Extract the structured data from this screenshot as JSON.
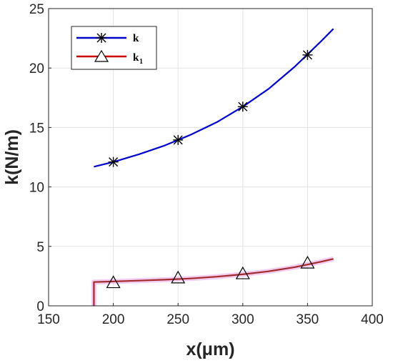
{
  "chart_data": {
    "type": "line",
    "xlabel": "x(μm)",
    "ylabel": "k(N/m)",
    "xlim": [
      150,
      400
    ],
    "ylim": [
      0,
      25
    ],
    "xticks": [
      150,
      200,
      250,
      300,
      350,
      400
    ],
    "yticks": [
      0,
      5,
      10,
      15,
      20,
      25
    ],
    "grid": true,
    "legend_position": "top-left",
    "series": [
      {
        "name": "k",
        "color": "#0000cc",
        "marker": "asterisk",
        "curve_x": [
          185,
          200,
          220,
          240,
          260,
          280,
          300,
          320,
          340,
          360,
          370
        ],
        "curve_y": [
          11.7,
          12.1,
          12.75,
          13.5,
          14.4,
          15.45,
          16.75,
          18.25,
          20.1,
          22.2,
          23.3
        ],
        "marker_x": [
          200,
          250,
          300,
          350
        ],
        "marker_y": [
          12.1,
          13.95,
          16.75,
          21.1
        ]
      },
      {
        "name": "k1",
        "color": "#a52a2a",
        "marker": "triangle",
        "curve_x": [
          185,
          185,
          200,
          220,
          240,
          260,
          280,
          300,
          320,
          340,
          360,
          370
        ],
        "curve_y": [
          0,
          2.0,
          2.05,
          2.12,
          2.2,
          2.3,
          2.45,
          2.65,
          2.9,
          3.25,
          3.7,
          3.95
        ],
        "marker_x": [
          200,
          250,
          300,
          350
        ],
        "marker_y": [
          1.95,
          2.35,
          2.7,
          3.6
        ]
      }
    ]
  },
  "legend": {
    "k_label": "k",
    "k1_label": "k",
    "k1_sub": "1"
  }
}
